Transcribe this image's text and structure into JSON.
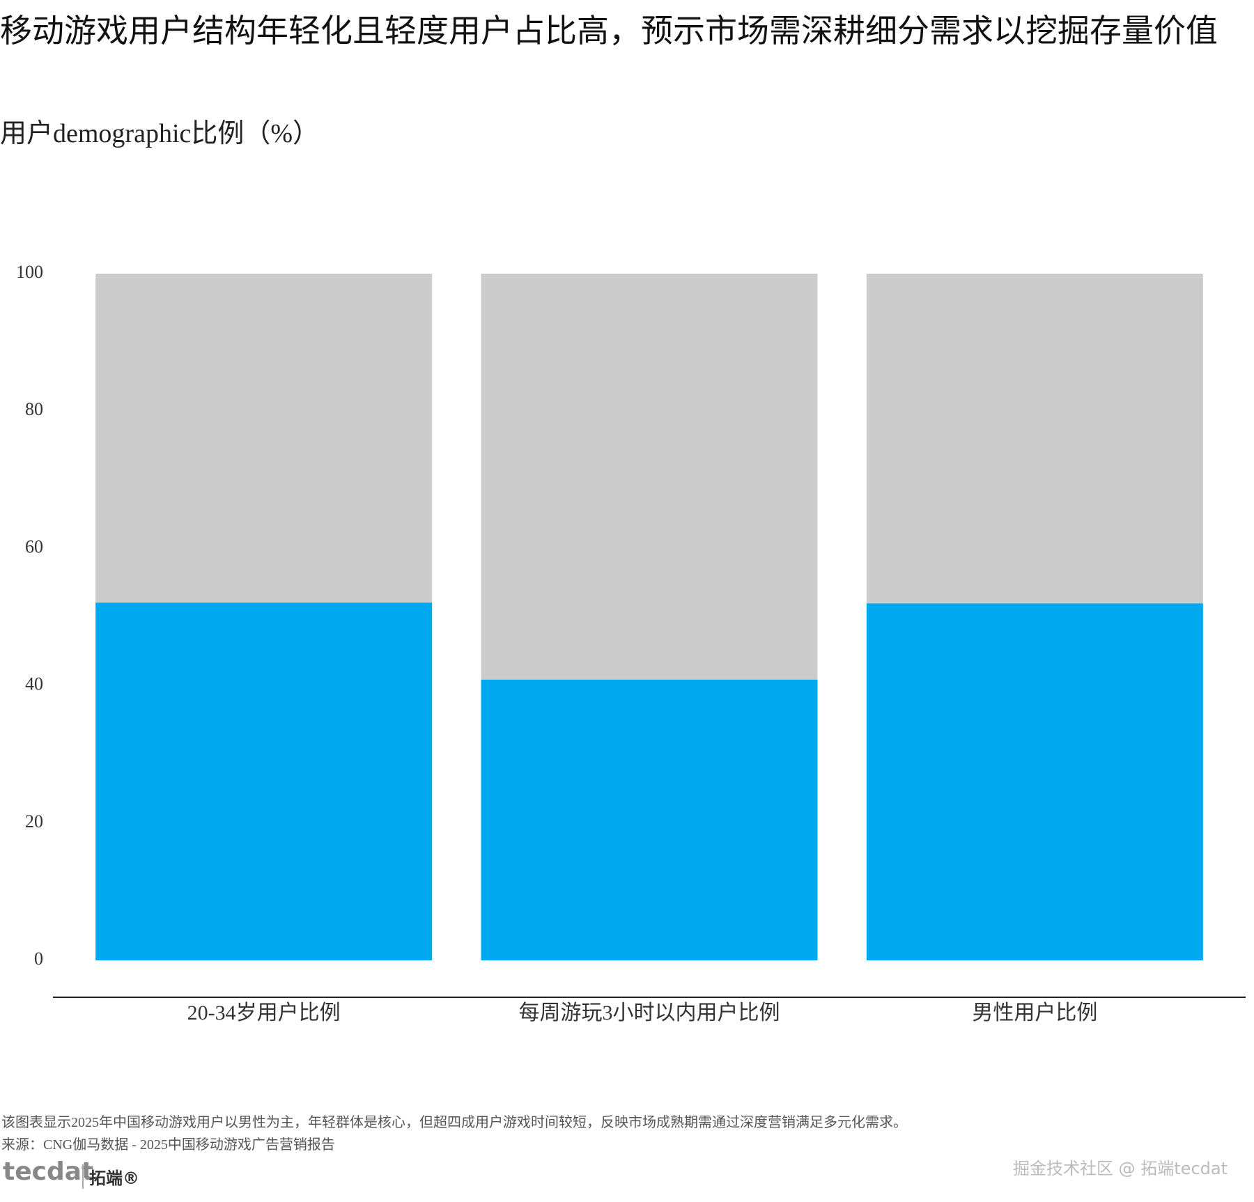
{
  "chart_data": {
    "type": "stacked_bar",
    "title": "移动游戏用户结构年轻化且轻度用户占比高，预示市场需深耕细分需求以挖掘存量价值",
    "subtitle": "用户demographic比例（%）",
    "categories": [
      "20-34岁用户比例",
      "每周游玩3小时以内用户比例",
      "男性用户比例"
    ],
    "series": [
      {
        "color": "#00a8f0",
        "values": [
          52.1,
          40.9,
          52
        ],
        "labels": true
      },
      {
        "color": "#cccccc",
        "values": [
          47.9,
          59.1,
          48
        ],
        "labels": false
      }
    ],
    "ylim": [
      0,
      100
    ],
    "yticks": [
      0,
      20,
      40,
      60,
      80,
      100
    ],
    "grid": false,
    "note": "该图表显示2025年中国移动游戏用户以男性为主，年轻群体是核心，但超四成用户游戏时间较短，反映市场成熟期需通过深度营销满足多元化需求。",
    "source": "来源：CNG伽马数据 - 2025中国移动游戏广告营销报告"
  },
  "footer": {
    "logo": "tecdat",
    "logo_cn": "拓端®",
    "watermark": "掘金技术社区 @ 拓端tecdat"
  }
}
